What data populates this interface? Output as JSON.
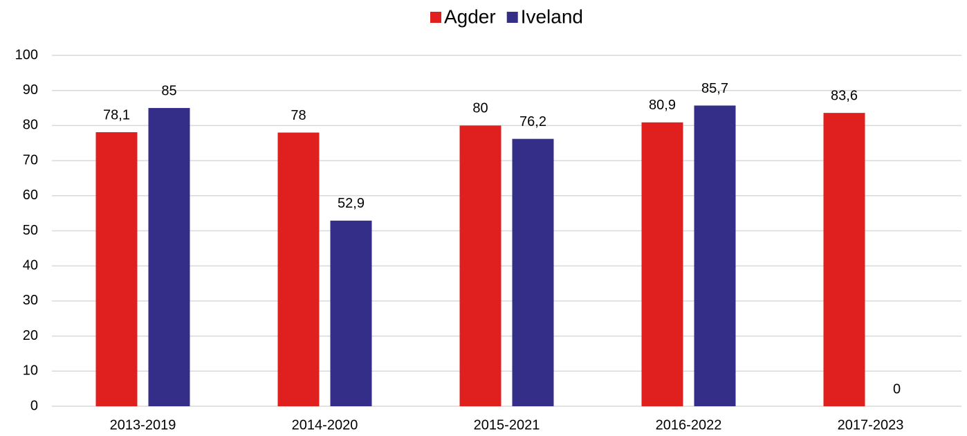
{
  "chart_data": {
    "type": "bar",
    "categories": [
      "2013-2019",
      "2014-2020",
      "2015-2021",
      "2016-2022",
      "2017-2023"
    ],
    "series": [
      {
        "name": "Agder",
        "color": "#e0201e",
        "values": [
          78.1,
          78,
          80,
          80.9,
          83.6
        ],
        "value_labels": [
          "78,1",
          "78",
          "80",
          "80,9",
          "83,6"
        ]
      },
      {
        "name": "Iveland",
        "color": "#352e88",
        "values": [
          85,
          52.9,
          76.2,
          85.7,
          0
        ],
        "value_labels": [
          "85",
          "52,9",
          "76,2",
          "85,7",
          "0"
        ]
      }
    ],
    "ylim": [
      0,
      100
    ],
    "yticks": [
      0,
      10,
      20,
      30,
      40,
      50,
      60,
      70,
      80,
      90,
      100
    ],
    "grid": true,
    "legend": "top"
  }
}
